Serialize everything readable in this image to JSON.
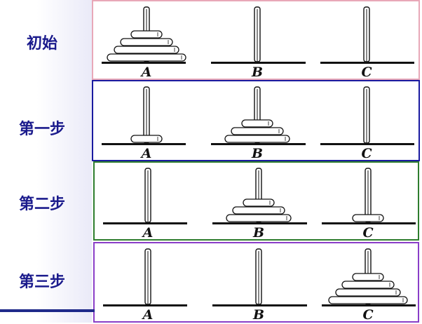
{
  "rows": [
    {
      "label": "初始",
      "border": "#e8a8b8",
      "disks": {
        "A": 4,
        "B": 0,
        "C": 0
      }
    },
    {
      "label": "第一步",
      "border": "#1a1aa0",
      "disks": {
        "A": 1,
        "B": 3,
        "C": 0
      }
    },
    {
      "label": "第二步",
      "border": "#2e7d2e",
      "disks": {
        "A": 0,
        "B": 3,
        "C": 1
      }
    },
    {
      "label": "第三步",
      "border": "#8a3ec8",
      "disks": {
        "A": 0,
        "B": 0,
        "C": 4
      }
    }
  ],
  "pegs": [
    "A",
    "B",
    "C"
  ],
  "colors": {
    "label_text": "#1a1a8c",
    "ink": "#111111",
    "bottom_line": "#1f2a8a"
  }
}
